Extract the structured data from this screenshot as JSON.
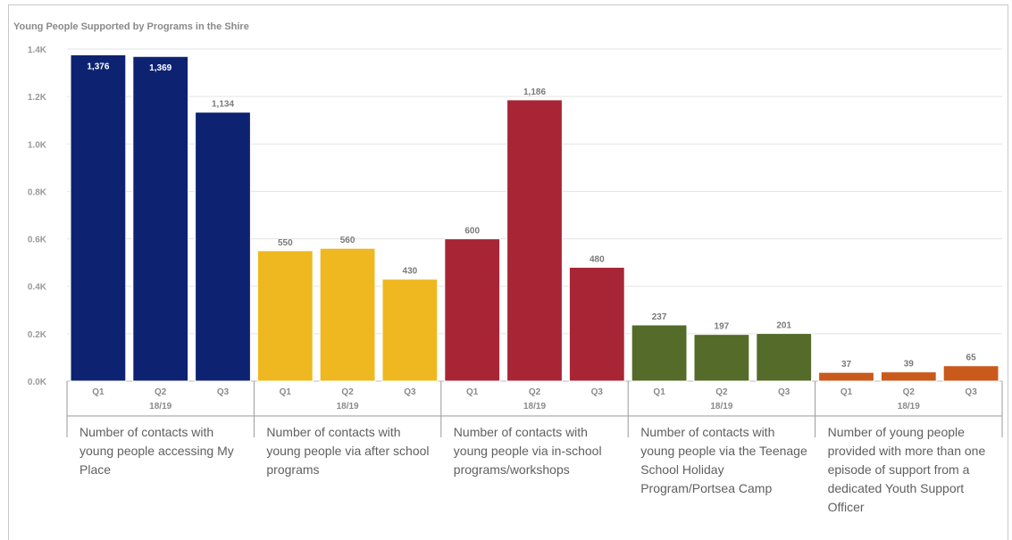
{
  "chart_data": {
    "type": "bar",
    "title": "Young People Supported by Programs in the Shire",
    "y_ticks": [
      "0.0K",
      "0.2K",
      "0.4K",
      "0.6K",
      "0.8K",
      "1.0K",
      "1.2K",
      "1.4K"
    ],
    "ylim": [
      0,
      1400
    ],
    "grid": true,
    "groups": [
      {
        "label": "Number of contacts with young people accessing My Place",
        "period": "18/19",
        "color": "#0d2372",
        "bars": [
          {
            "quarter": "Q1",
            "value": 1376,
            "label": "1,376"
          },
          {
            "quarter": "Q2",
            "value": 1369,
            "label": "1,369"
          },
          {
            "quarter": "Q3",
            "value": 1134,
            "label": "1,134"
          }
        ]
      },
      {
        "label": "Number of contacts with young people via after school programs",
        "period": "18/19",
        "color": "#efb820",
        "bars": [
          {
            "quarter": "Q1",
            "value": 550,
            "label": "550"
          },
          {
            "quarter": "Q2",
            "value": 560,
            "label": "560"
          },
          {
            "quarter": "Q3",
            "value": 430,
            "label": "430"
          }
        ]
      },
      {
        "label": "Number of contacts with young people via in-school programs/workshops",
        "period": "18/19",
        "color": "#a82535",
        "bars": [
          {
            "quarter": "Q1",
            "value": 600,
            "label": "600"
          },
          {
            "quarter": "Q2",
            "value": 1186,
            "label": "1,186"
          },
          {
            "quarter": "Q3",
            "value": 480,
            "label": "480"
          }
        ]
      },
      {
        "label": "Number of contacts with young people via the Teenage School Holiday Program/Portsea Camp",
        "period": "18/19",
        "color": "#546b2a",
        "bars": [
          {
            "quarter": "Q1",
            "value": 237,
            "label": "237"
          },
          {
            "quarter": "Q2",
            "value": 197,
            "label": "197"
          },
          {
            "quarter": "Q3",
            "value": 201,
            "label": "201"
          }
        ]
      },
      {
        "label": "Number of young people provided with more than one episode of support from a dedicated Youth Support Officer",
        "period": "18/19",
        "color": "#c95a1c",
        "bars": [
          {
            "quarter": "Q1",
            "value": 37,
            "label": "37"
          },
          {
            "quarter": "Q2",
            "value": 39,
            "label": "39"
          },
          {
            "quarter": "Q3",
            "value": 65,
            "label": "65"
          }
        ]
      }
    ]
  }
}
